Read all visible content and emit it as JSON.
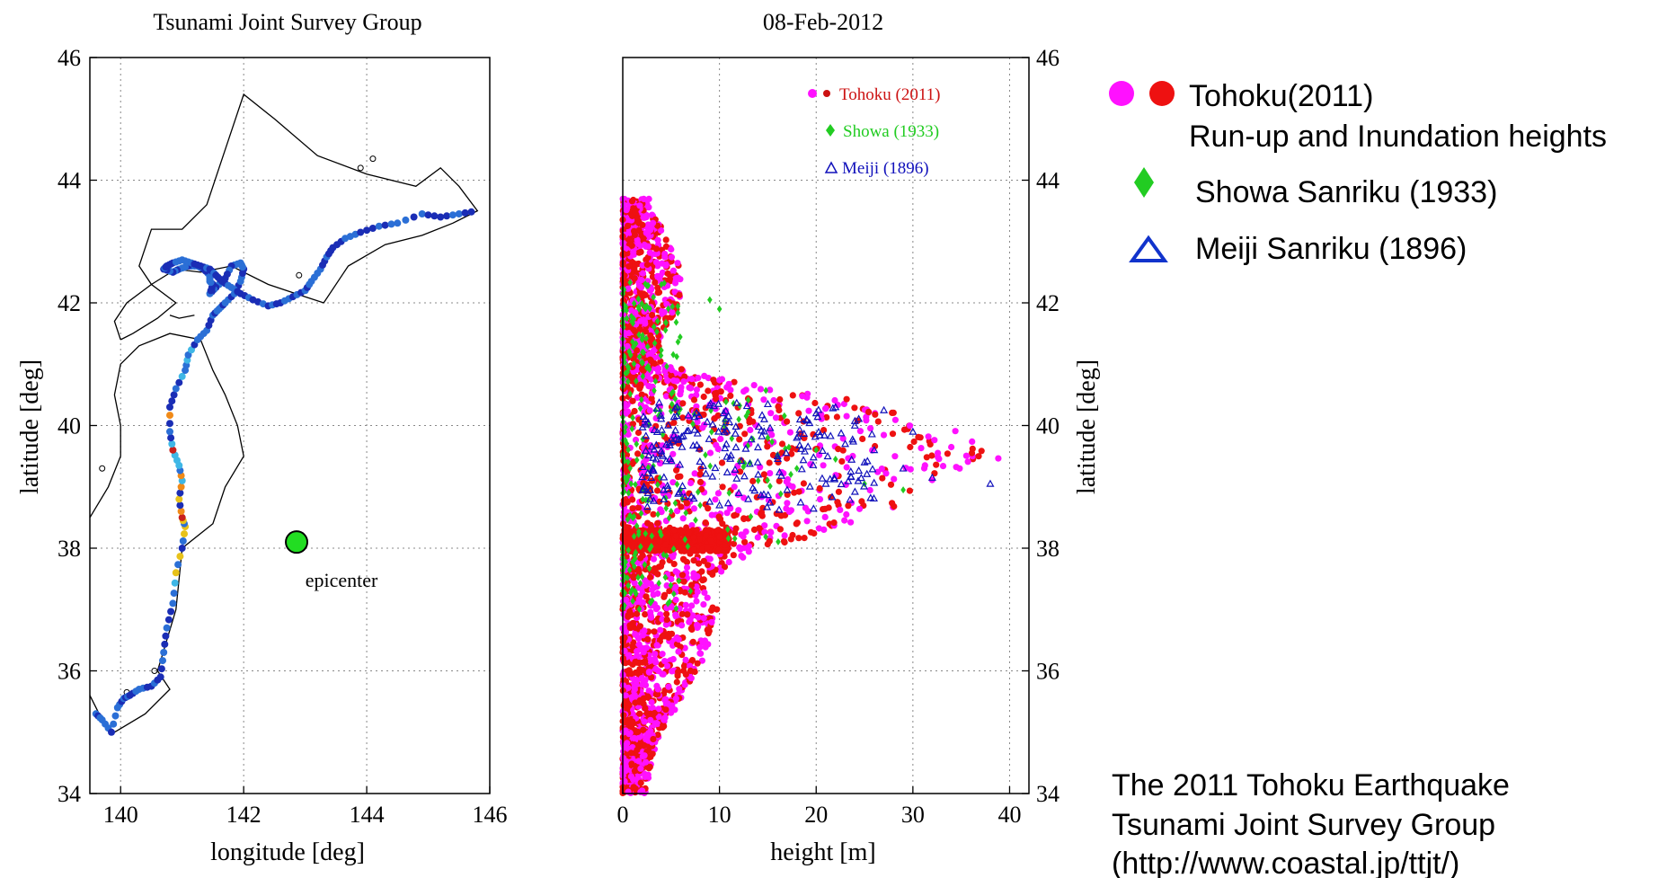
{
  "chart_data": [
    {
      "type": "scatter",
      "title": "Tsunami Joint Survey Group",
      "xlabel": "longitude [deg]",
      "ylabel": "latitude [deg]",
      "xlim": [
        139.5,
        146
      ],
      "ylim": [
        34,
        46
      ],
      "xticks": [
        "140",
        "142",
        "144",
        "146"
      ],
      "yticks": [
        "34",
        "36",
        "38",
        "40",
        "42",
        "44",
        "46"
      ],
      "grid": true,
      "coastline_color": "#000000",
      "survey_colors": [
        "#1a2db5",
        "#2b6fd6",
        "#3fb7e6",
        "#e8c21a",
        "#f08a18",
        "#c8201c"
      ],
      "annotation": {
        "text": "epicenter",
        "x": 142.86,
        "y": 38.1,
        "color": "#22dd22"
      },
      "series": [
        {
          "x": [
            139.6,
            139.7,
            139.85,
            139.95,
            140.05,
            140.15,
            140.3,
            140.5,
            140.65,
            140.7,
            140.75,
            140.85,
            140.9,
            141.0,
            141.05,
            141.0,
            140.95,
            141.0,
            140.95,
            140.85,
            140.8,
            140.8,
            140.9,
            141.05,
            141.1,
            141.25,
            141.4,
            141.5,
            141.6,
            141.7,
            141.85,
            141.95,
            142.0,
            141.95,
            141.8,
            141.7,
            141.55,
            141.45,
            141.5,
            141.45,
            141.45,
            141.35,
            141.25,
            141.1,
            140.95,
            140.85,
            140.7,
            140.75,
            140.85,
            141.0,
            141.15,
            141.3,
            141.45,
            141.55,
            141.65,
            141.8,
            141.95,
            142.15,
            142.4,
            142.6,
            142.8,
            143.0,
            143.1,
            143.25,
            143.35,
            143.45,
            143.65,
            143.9,
            144.2,
            144.5,
            144.9,
            145.2,
            145.5,
            145.8
          ],
          "y": [
            35.3,
            35.2,
            35.0,
            35.4,
            35.55,
            35.6,
            35.7,
            35.75,
            35.9,
            36.3,
            36.7,
            37.1,
            37.6,
            38.0,
            38.35,
            38.5,
            38.8,
            39.1,
            39.35,
            39.6,
            39.9,
            40.3,
            40.6,
            40.9,
            41.15,
            41.4,
            41.55,
            41.8,
            41.9,
            42.0,
            42.15,
            42.35,
            42.55,
            42.65,
            42.6,
            42.4,
            42.25,
            42.15,
            42.3,
            42.35,
            42.45,
            42.55,
            42.6,
            42.6,
            42.55,
            42.5,
            42.55,
            42.6,
            42.65,
            42.7,
            42.65,
            42.6,
            42.55,
            42.45,
            42.35,
            42.25,
            42.15,
            42.05,
            41.95,
            42.0,
            42.1,
            42.2,
            42.35,
            42.55,
            42.75,
            42.9,
            43.05,
            43.15,
            43.25,
            43.3,
            43.45,
            43.4,
            43.45,
            43.5
          ]
        }
      ]
    },
    {
      "type": "scatter",
      "title": "08-Feb-2012",
      "xlabel": "height [m]",
      "ylabel": "latitude [deg]",
      "xlim": [
        0,
        42
      ],
      "ylim": [
        34,
        46
      ],
      "xticks": [
        "0",
        "10",
        "20",
        "30",
        "40"
      ],
      "yticks": [
        "34",
        "36",
        "38",
        "40",
        "42",
        "44",
        "46"
      ],
      "grid": true,
      "inset_legend": [
        {
          "label": "Tohoku (2011)",
          "color": "#cc1111",
          "marker": "circle"
        },
        {
          "label": "Showa (1933)",
          "color": "#22cc22",
          "marker": "diamond"
        },
        {
          "label": "Meiji (1896)",
          "color": "#1111bb",
          "marker": "triangle"
        }
      ],
      "series": [
        {
          "name": "Tohoku (2011)",
          "color": "#ee1111",
          "alt_color": "#ff11ff",
          "envelope": {
            "lat": [
              34.0,
              34.5,
              35.0,
              35.5,
              36.0,
              36.5,
              37.0,
              37.5,
              38.0,
              38.3,
              38.6,
              38.9,
              39.2,
              39.5,
              39.8,
              40.1,
              40.4,
              40.7,
              41.0,
              41.5,
              42.0,
              42.5,
              43.0,
              43.5
            ],
            "max_height": [
              2.5,
              3,
              4,
              6,
              8,
              9,
              10,
              9,
              15,
              22,
              28,
              30,
              33,
              40,
              38,
              30,
              25,
              12,
              4,
              4,
              6,
              6,
              5,
              3
            ]
          }
        },
        {
          "name": "Showa (1933)",
          "color": "#22cc22",
          "x": [
            9,
            10,
            12,
            18,
            25,
            29,
            8,
            5,
            3,
            15,
            20,
            22,
            14,
            7,
            11,
            2,
            4
          ],
          "y": [
            42.05,
            41.9,
            40.1,
            39.3,
            39.05,
            38.95,
            38.7,
            38.6,
            38.2,
            39.8,
            39.6,
            39.45,
            39.1,
            37.3,
            38.9,
            41.4,
            42.3
          ]
        },
        {
          "name": "Meiji (1896)",
          "color": "#1111bb",
          "x": [
            38,
            32,
            29,
            26,
            24,
            22,
            20,
            18,
            16,
            14,
            12,
            10,
            27,
            30,
            21,
            17,
            25,
            23,
            19,
            15
          ],
          "y": [
            39.05,
            39.15,
            39.3,
            39.6,
            40.0,
            40.3,
            40.2,
            39.8,
            39.5,
            39.2,
            38.9,
            38.7,
            40.25,
            39.9,
            39.05,
            38.95,
            39.4,
            39.7,
            40.1,
            40.35
          ]
        }
      ]
    }
  ],
  "legend": {
    "items": [
      {
        "line1": "Tohoku(2011)",
        "line2": "Run-up and Inundation heights",
        "colors": [
          "#ff11ff",
          "#ee1111"
        ],
        "marker": "circle"
      },
      {
        "line1": "Showa Sanriku (1933)",
        "colors": [
          "#22cc22"
        ],
        "marker": "diamond"
      },
      {
        "line1": "Meiji Sanriku (1896)",
        "colors": [
          "#1133cc"
        ],
        "marker": "triangle"
      }
    ]
  },
  "credit": {
    "line1": "The 2011 Tohoku Earthquake",
    "line2": "Tsunami Joint Survey Group",
    "line3": "(http://www.coastal.jp/ttjt/)"
  }
}
